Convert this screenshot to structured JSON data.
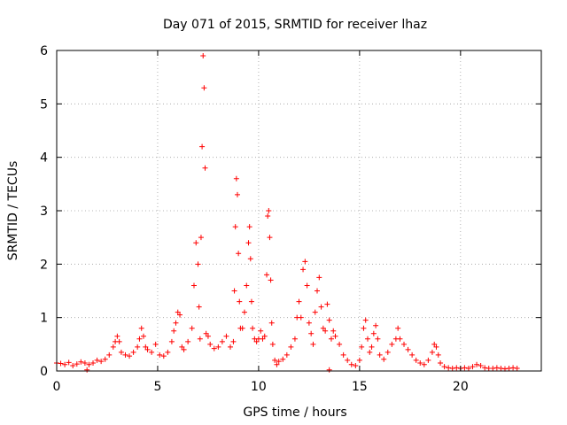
{
  "chart_data": {
    "type": "scatter",
    "title": "Day 071 of 2015, SRMTID for receiver lhaz",
    "xlabel": "GPS time / hours",
    "ylabel": "SRMTID / TECUs",
    "xlim": [
      0,
      24
    ],
    "ylim": [
      0,
      6
    ],
    "xticks": [
      0,
      5,
      10,
      15,
      20
    ],
    "yticks": [
      0,
      1,
      2,
      3,
      4,
      5,
      6
    ],
    "grid": true,
    "marker": "+",
    "color": "#ff0000",
    "series": [
      {
        "name": "SRMTID",
        "x": [
          0.0,
          0.2,
          0.4,
          0.6,
          0.8,
          1.0,
          1.2,
          1.4,
          1.5,
          1.6,
          1.8,
          2.0,
          2.2,
          2.4,
          2.6,
          2.8,
          2.9,
          3.0,
          3.1,
          3.2,
          3.4,
          3.6,
          3.8,
          4.0,
          4.1,
          4.2,
          4.3,
          4.4,
          4.5,
          4.7,
          4.9,
          5.1,
          5.3,
          5.5,
          5.7,
          5.8,
          5.9,
          6.0,
          6.1,
          6.2,
          6.3,
          6.5,
          6.7,
          6.8,
          6.9,
          7.0,
          7.05,
          7.1,
          7.15,
          7.2,
          7.25,
          7.3,
          7.35,
          7.4,
          7.5,
          7.6,
          7.8,
          8.0,
          8.2,
          8.4,
          8.6,
          8.75,
          8.8,
          8.85,
          8.9,
          8.95,
          9.0,
          9.05,
          9.1,
          9.2,
          9.3,
          9.4,
          9.5,
          9.55,
          9.6,
          9.65,
          9.7,
          9.8,
          9.9,
          10.0,
          10.1,
          10.2,
          10.3,
          10.4,
          10.45,
          10.5,
          10.55,
          10.6,
          10.65,
          10.7,
          10.8,
          10.9,
          11.0,
          11.2,
          11.4,
          11.6,
          11.8,
          11.9,
          12.0,
          12.1,
          12.2,
          12.3,
          12.4,
          12.5,
          12.6,
          12.7,
          12.8,
          12.9,
          13.0,
          13.1,
          13.2,
          13.3,
          13.4,
          13.5,
          13.6,
          13.7,
          13.8,
          14.0,
          14.2,
          14.4,
          14.6,
          14.8,
          15.0,
          15.1,
          15.2,
          15.3,
          15.4,
          15.5,
          15.6,
          15.7,
          15.8,
          15.9,
          16.0,
          16.2,
          16.4,
          16.6,
          16.8,
          16.9,
          17.0,
          17.2,
          17.4,
          17.6,
          17.8,
          18.0,
          18.2,
          18.4,
          18.6,
          18.7,
          18.8,
          18.9,
          19.0,
          19.2,
          19.4,
          19.6,
          19.8,
          20.0,
          20.2,
          20.4,
          20.6,
          20.8,
          21.0,
          21.2,
          21.4,
          21.6,
          21.8,
          22.0,
          22.2,
          22.4,
          22.6,
          22.8,
          13.5
        ],
        "y": [
          0.15,
          0.14,
          0.12,
          0.16,
          0.1,
          0.13,
          0.17,
          0.15,
          0.02,
          0.12,
          0.15,
          0.2,
          0.18,
          0.22,
          0.3,
          0.45,
          0.55,
          0.65,
          0.55,
          0.35,
          0.3,
          0.28,
          0.35,
          0.45,
          0.6,
          0.8,
          0.65,
          0.45,
          0.4,
          0.35,
          0.5,
          0.3,
          0.28,
          0.35,
          0.55,
          0.75,
          0.9,
          1.1,
          1.05,
          0.45,
          0.4,
          0.55,
          0.8,
          1.6,
          2.4,
          2.0,
          1.2,
          0.6,
          2.5,
          4.2,
          5.9,
          5.3,
          3.8,
          0.7,
          0.65,
          0.5,
          0.42,
          0.45,
          0.55,
          0.65,
          0.45,
          0.55,
          1.5,
          2.7,
          3.6,
          3.3,
          2.2,
          1.3,
          0.8,
          0.8,
          1.1,
          1.6,
          2.4,
          2.7,
          2.1,
          1.3,
          0.8,
          0.6,
          0.55,
          0.6,
          0.75,
          0.6,
          0.65,
          1.8,
          2.9,
          3.0,
          2.5,
          1.7,
          0.9,
          0.5,
          0.2,
          0.12,
          0.18,
          0.22,
          0.3,
          0.45,
          0.6,
          1.0,
          1.3,
          1.0,
          1.9,
          2.05,
          1.6,
          0.9,
          0.7,
          0.5,
          1.1,
          1.5,
          1.75,
          1.2,
          0.8,
          0.75,
          1.25,
          0.95,
          0.6,
          0.75,
          0.65,
          0.5,
          0.3,
          0.2,
          0.12,
          0.1,
          0.2,
          0.45,
          0.8,
          0.95,
          0.6,
          0.35,
          0.45,
          0.7,
          0.85,
          0.6,
          0.3,
          0.22,
          0.35,
          0.5,
          0.6,
          0.8,
          0.6,
          0.5,
          0.4,
          0.3,
          0.2,
          0.15,
          0.12,
          0.2,
          0.35,
          0.5,
          0.45,
          0.3,
          0.15,
          0.08,
          0.06,
          0.05,
          0.06,
          0.05,
          0.06,
          0.05,
          0.08,
          0.12,
          0.1,
          0.06,
          0.05,
          0.05,
          0.06,
          0.05,
          0.04,
          0.05,
          0.06,
          0.05,
          0.02
        ]
      }
    ]
  }
}
